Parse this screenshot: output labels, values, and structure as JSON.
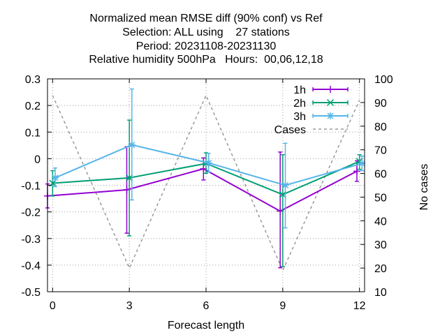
{
  "chart_data": {
    "type": "line",
    "title_lines": [
      "Normalized mean RMSE diff (90% conf) vs Ref",
      "Selection: ALL using    27 stations",
      "Period: 20231108-20231130",
      "Relative humidity 500hPa   Hours:  00,06,12,18"
    ],
    "xlabel": "Forecast length",
    "ylabel": "",
    "y2label": "No cases",
    "xlim": [
      -0.2,
      12.2
    ],
    "ylim": [
      -0.5,
      0.3
    ],
    "y2lim": [
      10,
      100
    ],
    "x_ticks": [
      0,
      3,
      6,
      9,
      12
    ],
    "y_ticks": [
      -0.5,
      -0.4,
      -0.3,
      -0.2,
      -0.1,
      0,
      0.1,
      0.2,
      0.3
    ],
    "y_tick_labels": [
      "-0.5",
      "-0.4",
      "-0.3",
      "-0.2",
      "-0.1",
      "0",
      "0.1",
      "0.2",
      "0.3"
    ],
    "y2_ticks": [
      10,
      20,
      30,
      40,
      50,
      60,
      70,
      80,
      90,
      100
    ],
    "grid": true,
    "legend_position": "top-right",
    "series": [
      {
        "name": "1h",
        "color": "#9400d3",
        "marker": "plus",
        "x": [
          -0.2,
          2.9,
          5.9,
          8.9,
          11.9
        ],
        "y": [
          -0.14,
          -0.117,
          -0.038,
          -0.197,
          -0.047
        ],
        "err_low": [
          -0.185,
          -0.28,
          -0.08,
          -0.41,
          -0.085
        ],
        "err_high": [
          -0.095,
          0.045,
          0.003,
          0.025,
          -0.008
        ]
      },
      {
        "name": "2h",
        "color": "#009e73",
        "marker": "cross",
        "x": [
          0.0,
          3.0,
          6.0,
          9.0,
          12.0
        ],
        "y": [
          -0.092,
          -0.072,
          -0.018,
          -0.135,
          -0.01
        ],
        "err_low": [
          -0.14,
          -0.29,
          -0.055,
          -0.405,
          -0.04
        ],
        "err_high": [
          -0.045,
          0.145,
          0.022,
          0.015,
          0.015
        ]
      },
      {
        "name": "3h",
        "color": "#56b4e9",
        "marker": "star",
        "x": [
          0.1,
          3.1,
          6.1,
          9.1,
          12.1
        ],
        "y": [
          -0.072,
          0.052,
          -0.016,
          -0.1,
          -0.018
        ],
        "err_low": [
          -0.105,
          -0.155,
          -0.05,
          -0.26,
          -0.045
        ],
        "err_high": [
          -0.035,
          0.262,
          0.02,
          0.058,
          0.01
        ]
      }
    ],
    "cases": {
      "name": "Cases",
      "color": "#999999",
      "axis": "y2",
      "x": [
        0,
        3,
        6,
        9,
        12
      ],
      "y": [
        93,
        20,
        93,
        19,
        91
      ]
    }
  }
}
